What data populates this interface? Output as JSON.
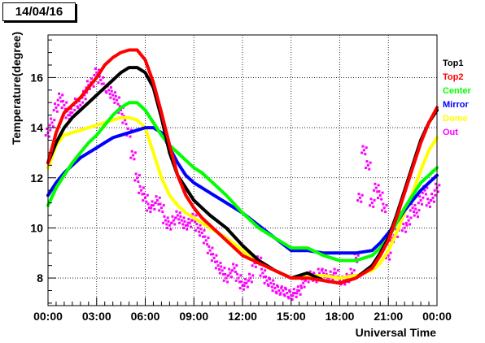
{
  "page": {
    "date_label": "14/04/16"
  },
  "chart_data": {
    "type": "line",
    "title": "",
    "xlabel": "Universal Time",
    "ylabel": "Temperature(degree)",
    "xlim": [
      0,
      24
    ],
    "ylim": [
      6.9,
      17.7
    ],
    "grid": true,
    "legend_position": "right",
    "x_ticks": [
      {
        "value": 0,
        "label": "00:00"
      },
      {
        "value": 3,
        "label": "03:00"
      },
      {
        "value": 6,
        "label": "06:00"
      },
      {
        "value": 9,
        "label": "09:00"
      },
      {
        "value": 12,
        "label": "12:00"
      },
      {
        "value": 15,
        "label": "15:00"
      },
      {
        "value": 18,
        "label": "18:00"
      },
      {
        "value": 21,
        "label": "21:00"
      },
      {
        "value": 24,
        "label": "00:00"
      }
    ],
    "y_ticks": [
      {
        "value": 8,
        "label": "8"
      },
      {
        "value": 10,
        "label": "10"
      },
      {
        "value": 12,
        "label": "12"
      },
      {
        "value": 14,
        "label": "14"
      },
      {
        "value": 16,
        "label": "16"
      }
    ],
    "series": [
      {
        "name": "Top1",
        "color": "#000000",
        "style": "line",
        "x": [
          0,
          0.5,
          1,
          1.5,
          2,
          2.5,
          3,
          3.5,
          4,
          4.5,
          5,
          5.5,
          6,
          6.5,
          7,
          7.5,
          8,
          8.5,
          9,
          9.5,
          10,
          11,
          12,
          13,
          14,
          15,
          16,
          17,
          18,
          19,
          20,
          20.5,
          21,
          21.5,
          22,
          22.5,
          23,
          23.5,
          24
        ],
        "y": [
          12.6,
          13.4,
          14.0,
          14.4,
          14.7,
          15.0,
          15.3,
          15.6,
          15.9,
          16.2,
          16.4,
          16.4,
          16.2,
          15.6,
          14.4,
          13.0,
          12.1,
          11.6,
          11.1,
          10.8,
          10.5,
          10.0,
          9.3,
          8.7,
          8.3,
          8.0,
          8.2,
          7.9,
          7.8,
          8.0,
          8.5,
          9.0,
          9.6,
          10.5,
          11.5,
          12.5,
          13.5,
          14.2,
          14.7
        ]
      },
      {
        "name": "Top2",
        "color": "#ff0000",
        "style": "line",
        "x": [
          0,
          0.5,
          1,
          1.5,
          2,
          2.5,
          3,
          3.5,
          4,
          4.5,
          5,
          5.5,
          6,
          6.5,
          7,
          7.5,
          8,
          8.5,
          9,
          9.5,
          10,
          11,
          12,
          13,
          14,
          15,
          16,
          17,
          18,
          19,
          20,
          20.5,
          21,
          21.5,
          22,
          22.5,
          23,
          23.5,
          24
        ],
        "y": [
          12.6,
          13.8,
          14.6,
          14.9,
          15.2,
          15.6,
          16.0,
          16.5,
          16.8,
          17.0,
          17.1,
          17.1,
          16.7,
          15.8,
          14.6,
          13.3,
          12.1,
          11.3,
          10.8,
          10.4,
          10.1,
          9.5,
          8.9,
          8.6,
          8.3,
          8.0,
          8.0,
          7.9,
          7.8,
          8.0,
          8.4,
          8.9,
          9.5,
          10.4,
          11.4,
          12.4,
          13.4,
          14.2,
          14.8
        ]
      },
      {
        "name": "Center",
        "color": "#00ff00",
        "style": "line",
        "x": [
          0,
          0.5,
          1,
          1.5,
          2,
          2.5,
          3,
          3.5,
          4,
          4.5,
          5,
          5.5,
          6,
          6.5,
          7,
          7.5,
          8,
          8.5,
          9,
          9.5,
          10,
          11,
          12,
          13,
          14,
          15,
          16,
          17,
          18,
          19,
          20,
          20.5,
          21,
          21.5,
          22,
          22.5,
          23,
          23.5,
          24
        ],
        "y": [
          10.9,
          11.6,
          12.1,
          12.6,
          13.0,
          13.4,
          13.7,
          14.1,
          14.5,
          14.8,
          15.0,
          15.0,
          14.7,
          14.2,
          13.7,
          13.3,
          13.0,
          12.7,
          12.4,
          12.2,
          11.9,
          11.3,
          10.6,
          10.0,
          9.6,
          9.2,
          9.2,
          8.9,
          8.7,
          8.7,
          8.9,
          9.2,
          9.6,
          10.2,
          10.8,
          11.3,
          11.8,
          12.1,
          12.4
        ]
      },
      {
        "name": "Mirror",
        "color": "#0000ff",
        "style": "line",
        "x": [
          0,
          0.5,
          1,
          1.5,
          2,
          2.5,
          3,
          3.5,
          4,
          4.5,
          5,
          5.5,
          6,
          6.5,
          7,
          7.5,
          8,
          8.5,
          9,
          9.5,
          10,
          11,
          12,
          13,
          14,
          15,
          16,
          17,
          18,
          19,
          20,
          20.5,
          21,
          21.5,
          22,
          22.5,
          23,
          23.5,
          24
        ],
        "y": [
          11.3,
          11.8,
          12.2,
          12.5,
          12.8,
          13.0,
          13.2,
          13.4,
          13.6,
          13.7,
          13.8,
          13.9,
          14.0,
          14.0,
          13.8,
          13.2,
          12.6,
          12.1,
          11.8,
          11.6,
          11.4,
          11.0,
          10.6,
          10.1,
          9.6,
          9.1,
          9.1,
          9.0,
          9.0,
          9.0,
          9.1,
          9.4,
          9.8,
          10.2,
          10.7,
          11.1,
          11.5,
          11.8,
          12.1
        ]
      },
      {
        "name": "Dome",
        "color": "#ffff00",
        "style": "line",
        "x": [
          0,
          0.5,
          1,
          1.5,
          2,
          2.5,
          3,
          3.5,
          4,
          4.5,
          5,
          5.5,
          6,
          6.5,
          7,
          7.5,
          8,
          8.5,
          9,
          9.5,
          10,
          11,
          12,
          13,
          14,
          15,
          16,
          17,
          18,
          19,
          20,
          20.5,
          21,
          21.5,
          22,
          22.5,
          23,
          23.5,
          24
        ],
        "y": [
          12.4,
          13.3,
          13.7,
          13.8,
          13.9,
          14.0,
          14.1,
          14.2,
          14.3,
          14.4,
          14.4,
          14.3,
          14.0,
          13.0,
          12.0,
          11.3,
          10.9,
          10.6,
          10.4,
          10.2,
          10.0,
          9.6,
          9.1,
          8.6,
          8.3,
          8.0,
          8.1,
          8.1,
          8.0,
          8.1,
          8.3,
          8.6,
          9.1,
          9.8,
          10.6,
          11.4,
          12.3,
          13.1,
          13.6
        ]
      },
      {
        "name": "Out",
        "color": "#ff00ff",
        "style": "points",
        "x": [
          0,
          0.25,
          0.5,
          0.75,
          1,
          1.25,
          1.5,
          1.75,
          2,
          2.25,
          2.5,
          2.75,
          3,
          3.25,
          3.5,
          3.75,
          4,
          4.25,
          4.5,
          4.75,
          5,
          5.25,
          5.5,
          5.75,
          6,
          6.25,
          6.5,
          6.75,
          7,
          7.25,
          7.5,
          7.75,
          8,
          8.25,
          8.5,
          8.75,
          9,
          9.25,
          9.5,
          9.75,
          10,
          10.25,
          10.5,
          10.75,
          11,
          11.25,
          11.5,
          11.75,
          12,
          12.25,
          12.5,
          12.75,
          13,
          13.25,
          13.5,
          13.75,
          14,
          14.25,
          14.5,
          14.75,
          15,
          15.25,
          15.5,
          15.75,
          16,
          16.25,
          16.5,
          16.75,
          17,
          17.25,
          17.5,
          17.75,
          18,
          18.25,
          18.5,
          18.75,
          19,
          19.25,
          19.5,
          19.75,
          20,
          20.25,
          20.5,
          20.75,
          21,
          21.25,
          21.5,
          21.75,
          22,
          22.25,
          22.5,
          22.75,
          23,
          23.25,
          23.5,
          23.75,
          24
        ],
        "y": [
          13.8,
          14.2,
          14.8,
          15.2,
          14.9,
          14.5,
          14.6,
          15.0,
          14.9,
          15.3,
          15.7,
          15.8,
          16.2,
          15.9,
          15.6,
          15.5,
          15.3,
          15.1,
          14.7,
          14.3,
          13.8,
          12.9,
          12.0,
          11.5,
          11.2,
          10.8,
          10.9,
          11.1,
          10.8,
          10.3,
          10.1,
          10.3,
          10.5,
          10.3,
          10.1,
          10.2,
          10.4,
          10.0,
          9.8,
          9.5,
          9.1,
          8.8,
          8.5,
          8.3,
          8.0,
          8.2,
          8.4,
          8.0,
          7.7,
          7.8,
          8.0,
          8.6,
          8.7,
          8.2,
          7.9,
          7.8,
          7.6,
          7.5,
          7.5,
          7.4,
          7.3,
          7.4,
          7.5,
          7.8,
          8.0,
          8.1,
          8.0,
          8.2,
          8.2,
          8.0,
          8.1,
          8.2,
          7.9,
          7.9,
          8.0,
          8.2,
          8.8,
          11.2,
          13.1,
          12.5,
          11.0,
          11.6,
          11.3,
          10.8,
          8.9,
          9.6,
          9.8,
          10.5,
          10.0,
          10.3,
          10.8,
          10.6,
          11.1,
          11.5,
          11.0,
          11.2,
          11.6
        ]
      }
    ]
  }
}
